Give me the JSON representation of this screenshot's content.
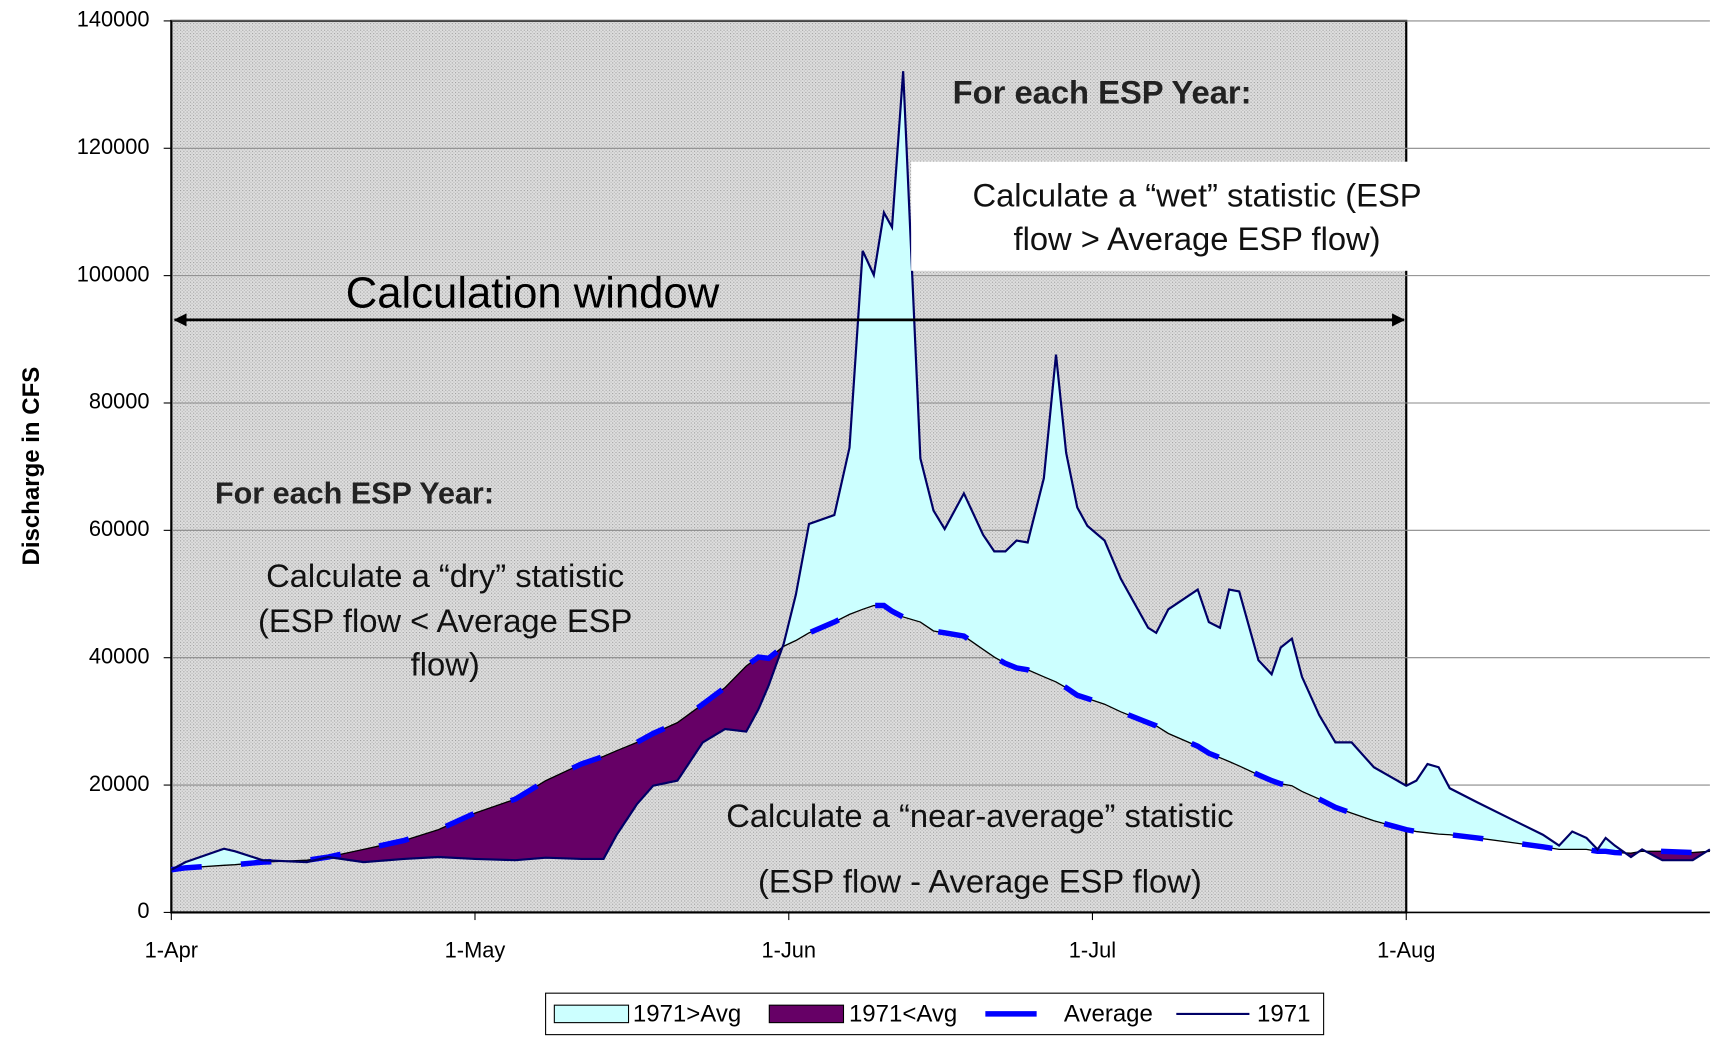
{
  "chart_data": {
    "type": "line",
    "y_label": "Discharge in CFS",
    "xlim": [
      0,
      152
    ],
    "xticks": [
      {
        "value": 0,
        "label": "1-Apr"
      },
      {
        "value": 30,
        "label": "1-May"
      },
      {
        "value": 61,
        "label": "1-Jun"
      },
      {
        "value": 91,
        "label": "1-Jul"
      },
      {
        "value": 122,
        "label": "1-Aug"
      }
    ],
    "ylim": [
      0,
      140000
    ],
    "yticks": [
      0,
      20000,
      40000,
      60000,
      80000,
      100000,
      120000,
      140000
    ],
    "grid": true,
    "window": [
      0,
      122
    ],
    "x": [
      0,
      1.4,
      5.2,
      6.3,
      9,
      13.4,
      15.5,
      19,
      23,
      26.4,
      30,
      34,
      37,
      40.5,
      42.7,
      44,
      46,
      47.6,
      50,
      52.5,
      54.7,
      56.8,
      58,
      59,
      60.5,
      61.7,
      63,
      65.5,
      67,
      68.3,
      69.4,
      70.4,
      71.2,
      72.3,
      74,
      75.3,
      76.4,
      78.3,
      80.2,
      81.3,
      82.4,
      83.5,
      84.6,
      86.2,
      87.4,
      88.4,
      89.5,
      90.5,
      92.2,
      93.8,
      96.5,
      97.3,
      98.5,
      101.4,
      102.5,
      103.6,
      104.5,
      105.5,
      107.4,
      108.7,
      109.6,
      110.7,
      111.7,
      113.4,
      115,
      116.6,
      118.8,
      122,
      123,
      124.1,
      125.2,
      126.3,
      129,
      132.3,
      135.5,
      137.1,
      138.4,
      139.8,
      140.9,
      141.7,
      142.6,
      144.2,
      145.3,
      147.3,
      150.3,
      152
    ],
    "series": [
      {
        "name": "1971>Avg",
        "color": "#ccffff",
        "fill": "above"
      },
      {
        "name": "1971<Avg",
        "color": "#660066",
        "fill": "below"
      },
      {
        "name": "Average",
        "color": "#0000ff",
        "style": "dashed",
        "values": [
          6700,
          7000,
          7400,
          7500,
          7900,
          8200,
          8700,
          9900,
          11300,
          13000,
          15600,
          17800,
          20700,
          23300,
          24500,
          25400,
          26700,
          28100,
          29800,
          32700,
          35300,
          38700,
          40100,
          39900,
          41800,
          42700,
          43900,
          45600,
          46800,
          47600,
          48200,
          48200,
          47300,
          46400,
          45600,
          44200,
          43900,
          43400,
          41300,
          40100,
          39100,
          38400,
          38100,
          37000,
          36200,
          35300,
          34100,
          33600,
          32700,
          31500,
          29800,
          29300,
          28100,
          26100,
          25000,
          24300,
          23700,
          23000,
          21600,
          20700,
          20200,
          19900,
          19000,
          17800,
          16500,
          15600,
          14400,
          13000,
          12700,
          12500,
          12300,
          12200,
          11700,
          11000,
          10300,
          9900,
          9900,
          9900,
          9600,
          9600,
          9400,
          9300,
          9600,
          9600,
          9400,
          9600
        ]
      },
      {
        "name": "1971",
        "color": "#000066",
        "style": "solid",
        "values": [
          6700,
          7900,
          10000,
          9600,
          8200,
          7900,
          8700,
          7900,
          8400,
          8700,
          8400,
          8200,
          8600,
          8400,
          8400,
          12200,
          17000,
          19900,
          20700,
          26700,
          28800,
          28400,
          31900,
          35600,
          42200,
          49900,
          61000,
          62400,
          73000,
          103900,
          100100,
          109900,
          107600,
          132100,
          71300,
          63100,
          60200,
          65800,
          59300,
          56700,
          56700,
          58400,
          58100,
          68200,
          87600,
          72200,
          63600,
          60700,
          58400,
          52400,
          44700,
          43900,
          47600,
          50700,
          45600,
          44700,
          50700,
          50400,
          39600,
          37400,
          41600,
          43000,
          37000,
          31000,
          26700,
          26700,
          22800,
          19900,
          20700,
          23300,
          22800,
          19500,
          17300,
          14700,
          12200,
          10500,
          12700,
          11700,
          9900,
          11700,
          10500,
          8700,
          9900,
          8200,
          8200,
          9900
        ]
      }
    ],
    "annotations": {
      "window_label": "Calculation window",
      "wet_heading": "For each ESP Year:",
      "wet_text": [
        "Calculate a “wet” statistic (ESP",
        "flow > Average ESP flow)"
      ],
      "dry_heading": "For each ESP Year:",
      "dry_text": [
        "Calculate a “dry” statistic",
        "(ESP flow < Average ESP",
        "flow)"
      ],
      "near_text": [
        "Calculate a “near-average” statistic",
        "(ESP flow - Average ESP flow)"
      ]
    }
  }
}
